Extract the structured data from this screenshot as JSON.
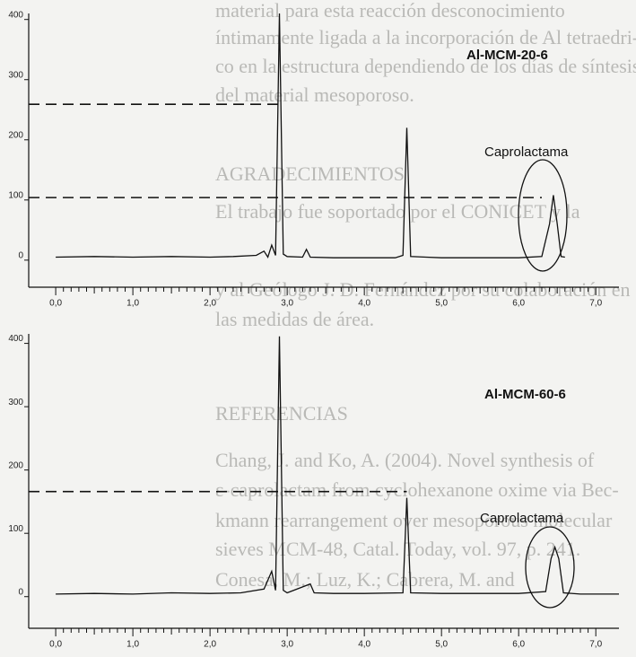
{
  "background_text": [
    "material para esta reacción desconocimiento",
    "íntimamente ligada a la incorporación de Al tetraedri-",
    "co en la estructura dependiendo de los días de síntesis",
    "del material mesoporoso.",
    "AGRADECIMIENTOS",
    "El trabajo fue soportado por el CONICET y la",
    "y al Geólogo J. D. Fernández por su colaboración en",
    "las medidas de área.",
    "REFERENCIAS",
    "Chang, J. and Ko, A. (2004). Novel synthesis of",
    "ε-caprolactam from cyclohexanone oxime via Bec-",
    "kmann rearrangement over mesoporous molecular",
    "sieves MCM-48, Catal. Today, vol. 97, p. 241.",
    "Conesa, M.; Luz, K.; Cabrera, M. and"
  ],
  "chart_data": [
    {
      "type": "line",
      "title": "Al-MCM-20-6",
      "annotation": "Caprolactama",
      "color": "#111111",
      "x": [
        0.0,
        0.5,
        1.0,
        1.5,
        2.0,
        2.3,
        2.6,
        2.7,
        2.75,
        2.8,
        2.85,
        2.9,
        2.95,
        3.0,
        3.2,
        3.25,
        3.3,
        3.6,
        4.0,
        4.4,
        4.5,
        4.55,
        4.6,
        4.8,
        5.0,
        5.5,
        6.0,
        6.3,
        6.4,
        6.45,
        6.5,
        6.55,
        6.6
      ],
      "values": [
        5,
        6,
        5,
        6,
        5,
        6,
        8,
        15,
        5,
        25,
        8,
        410,
        10,
        6,
        5,
        18,
        5,
        4,
        4,
        4,
        8,
        220,
        6,
        5,
        4,
        4,
        4,
        6,
        60,
        108,
        60,
        6,
        5
      ],
      "reference_lines": [
        {
          "value": 259,
          "x_end": 2.9
        },
        {
          "value": 104,
          "x_end": 6.3
        }
      ],
      "xlim": [
        -0.35,
        7.3
      ],
      "ylim": [
        -45,
        410
      ],
      "xticks": [
        {
          "value": 0,
          "label": "0,0"
        },
        {
          "value": 1,
          "label": "1,0"
        },
        {
          "value": 2,
          "label": "2,0"
        },
        {
          "value": 3,
          "label": "3,0"
        },
        {
          "value": 4,
          "label": "4,0"
        },
        {
          "value": 5,
          "label": "5,0"
        },
        {
          "value": 6,
          "label": "6,0"
        },
        {
          "value": 7,
          "label": "7,0"
        }
      ],
      "yticks": [
        0,
        100,
        200,
        300,
        400
      ]
    },
    {
      "type": "line",
      "title": "Al-MCM-60-6",
      "annotation": "Caprolactama",
      "color": "#111111",
      "x": [
        0.0,
        0.5,
        1.0,
        1.5,
        2.0,
        2.4,
        2.7,
        2.8,
        2.85,
        2.9,
        2.95,
        3.0,
        3.3,
        3.35,
        3.6,
        4.0,
        4.5,
        4.55,
        4.6,
        5.0,
        5.5,
        6.0,
        6.35,
        6.42,
        6.47,
        6.52,
        6.58,
        6.8,
        7.3
      ],
      "values": [
        4,
        5,
        4,
        6,
        5,
        6,
        12,
        40,
        10,
        411,
        10,
        6,
        20,
        6,
        5,
        5,
        6,
        156,
        6,
        5,
        5,
        5,
        8,
        60,
        78,
        60,
        6,
        4,
        4
      ],
      "reference_lines": [
        {
          "value": 166,
          "x_end": 4.55
        }
      ],
      "xlim": [
        -0.35,
        7.3
      ],
      "ylim": [
        -50,
        415
      ],
      "xticks": [
        {
          "value": 0,
          "label": "0,0"
        },
        {
          "value": 1,
          "label": "1,0"
        },
        {
          "value": 2,
          "label": "2,0"
        },
        {
          "value": 3,
          "label": "3,0"
        },
        {
          "value": 4,
          "label": "4,0"
        },
        {
          "value": 5,
          "label": "5,0"
        },
        {
          "value": 6,
          "label": "6,0"
        },
        {
          "value": 7,
          "label": "7,0"
        }
      ],
      "yticks": [
        0,
        100,
        200,
        300,
        400
      ]
    }
  ]
}
